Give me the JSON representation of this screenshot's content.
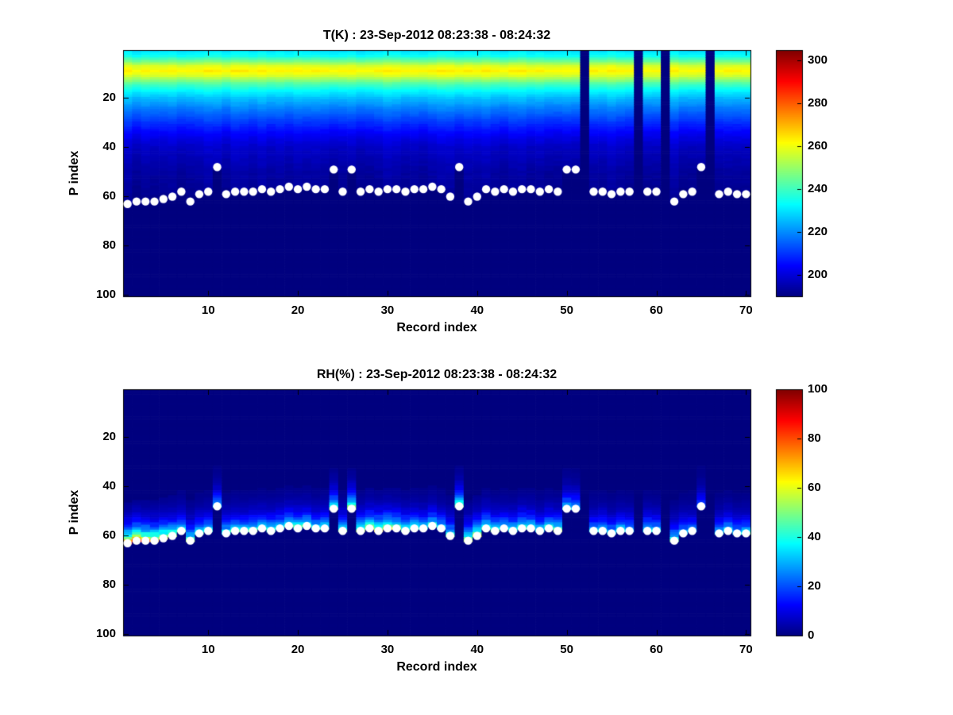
{
  "figure": {
    "background_color": "#ffffff"
  },
  "chart_data": [
    {
      "type": "heatmap",
      "field": "temperature",
      "title": "T(K) : 23-Sep-2012 08:23:38 - 08:24:32",
      "xlabel": "Record index",
      "ylabel": "P index",
      "x_range": [
        1,
        70
      ],
      "y_range": [
        1,
        100
      ],
      "y_axis_reversed": true,
      "x_ticks": [
        10,
        20,
        30,
        40,
        50,
        60,
        70
      ],
      "y_ticks": [
        20,
        40,
        60,
        80,
        100
      ],
      "colormap": "jet",
      "colorbar": {
        "min": 190,
        "max": 305,
        "ticks": [
          200,
          220,
          240,
          260,
          280,
          300
        ]
      },
      "no_data_color": "#00008f",
      "temperature_profile": {
        "p_index": [
          1,
          3,
          5,
          7,
          9,
          11,
          14,
          17,
          20,
          24,
          28,
          32,
          36,
          40,
          45,
          50,
          55,
          60,
          100
        ],
        "t_k": [
          230,
          235,
          246,
          258,
          263,
          257,
          243,
          233,
          226,
          219,
          213,
          207,
          202,
          198,
          196,
          194,
          193,
          192,
          192
        ]
      },
      "surface_p_index": [
        63,
        62,
        62,
        62,
        61,
        60,
        58,
        62,
        59,
        58,
        48,
        59,
        58,
        58,
        58,
        57,
        58,
        57,
        56,
        57,
        56,
        57,
        57,
        49,
        58,
        49,
        58,
        57,
        58,
        57,
        57,
        58,
        57,
        57,
        56,
        57,
        60,
        48,
        62,
        60,
        57,
        58,
        57,
        58,
        57,
        57,
        58,
        57,
        58,
        49,
        49,
        null,
        58,
        58,
        59,
        58,
        58,
        null,
        58,
        58,
        null,
        62,
        59,
        58,
        48,
        null,
        59,
        58,
        59,
        59
      ],
      "missing_records": [
        52,
        58,
        61,
        66
      ],
      "surface_marker": {
        "shape": "circle",
        "color": "#ffffff",
        "radius_px": 5.2
      }
    },
    {
      "type": "heatmap",
      "field": "relative_humidity",
      "title": "RH(%) : 23-Sep-2012 08:23:38 - 08:24:32",
      "xlabel": "Record index",
      "ylabel": "P index",
      "x_range": [
        1,
        70
      ],
      "y_range": [
        1,
        100
      ],
      "y_axis_reversed": true,
      "x_ticks": [
        10,
        20,
        30,
        40,
        50,
        60,
        70
      ],
      "y_ticks": [
        20,
        40,
        60,
        80,
        100
      ],
      "colormap": "jet",
      "colorbar": {
        "min": 0,
        "max": 100,
        "ticks": [
          0,
          20,
          40,
          60,
          80,
          100
        ]
      },
      "no_data_color": "#00008f",
      "surface_rh_peak": [
        80,
        85,
        75,
        70,
        65,
        55,
        45,
        50,
        42,
        40,
        35,
        42,
        45,
        40,
        45,
        40,
        45,
        42,
        45,
        50,
        45,
        40,
        45,
        52,
        45,
        58,
        50,
        60,
        65,
        60,
        55,
        50,
        45,
        40,
        45,
        40,
        45,
        52,
        55,
        60,
        50,
        45,
        40,
        45,
        50,
        45,
        40,
        45,
        50,
        40,
        35,
        0,
        35,
        40,
        35,
        40,
        35,
        0,
        40,
        35,
        0,
        45,
        35,
        30,
        25,
        0,
        35,
        40,
        35,
        40
      ],
      "rh_decay_scale_p": 4.5,
      "rh_visible_depth_p": 16,
      "surface_p_index": [
        63,
        62,
        62,
        62,
        61,
        60,
        58,
        62,
        59,
        58,
        48,
        59,
        58,
        58,
        58,
        57,
        58,
        57,
        56,
        57,
        56,
        57,
        57,
        49,
        58,
        49,
        58,
        57,
        58,
        57,
        57,
        58,
        57,
        57,
        56,
        57,
        60,
        48,
        62,
        60,
        57,
        58,
        57,
        58,
        57,
        57,
        58,
        57,
        58,
        49,
        49,
        null,
        58,
        58,
        59,
        58,
        58,
        null,
        58,
        58,
        null,
        62,
        59,
        58,
        48,
        null,
        59,
        58,
        59,
        59
      ],
      "missing_records": [
        52,
        58,
        61,
        66
      ],
      "surface_marker": {
        "shape": "circle",
        "color": "#ffffff",
        "radius_px": 5.2
      }
    }
  ]
}
